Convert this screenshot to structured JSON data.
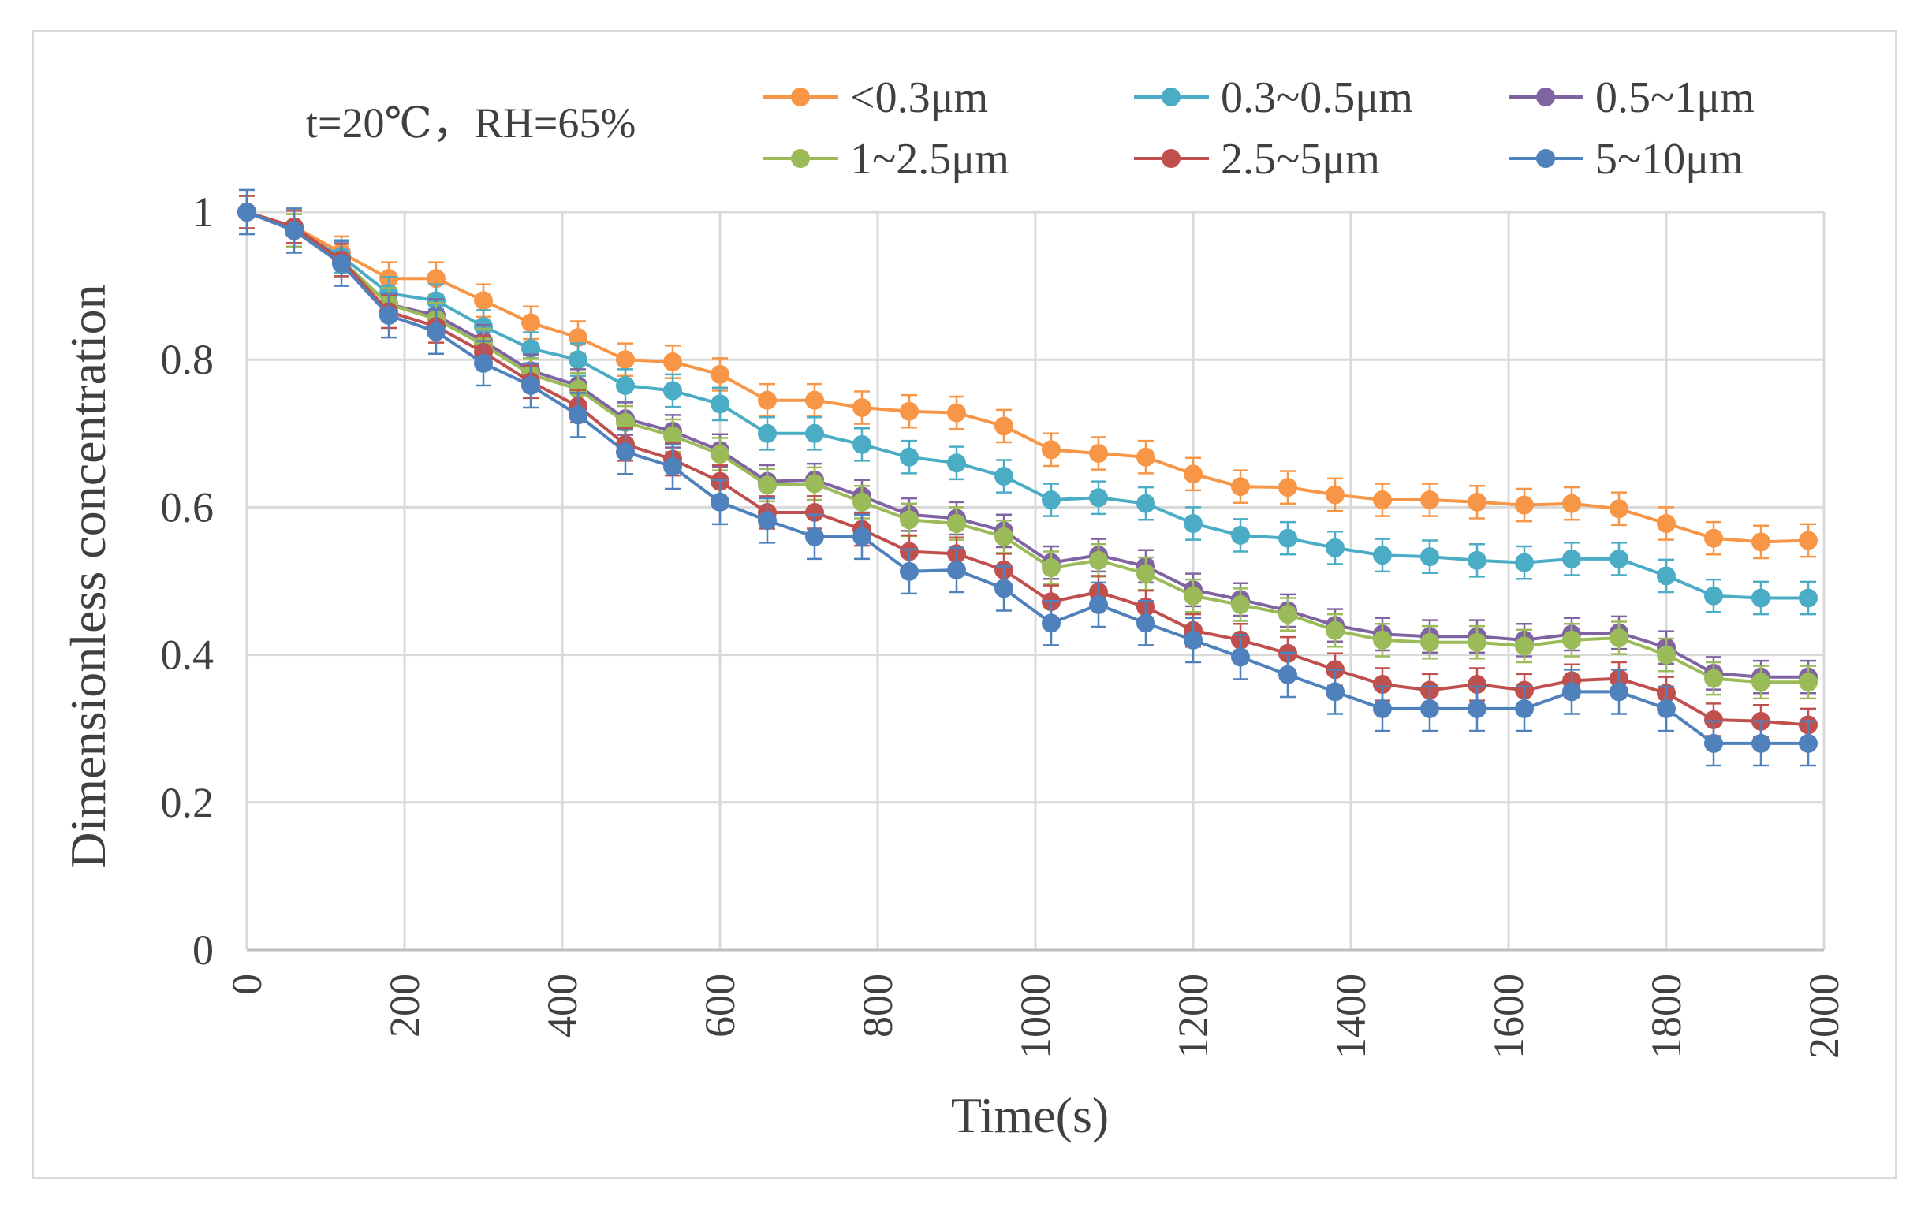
{
  "chart_data": {
    "type": "line",
    "annotation": "t=20℃，RH=65%",
    "xlabel": "Time(s)",
    "ylabel": "Dimensionless concentration",
    "xlim": [
      0,
      2000
    ],
    "ylim": [
      0,
      1
    ],
    "x_ticks": [
      "0",
      "200",
      "400",
      "600",
      "800",
      "1000",
      "1200",
      "1400",
      "1600",
      "1800",
      "2000"
    ],
    "y_ticks": [
      "0",
      "0.2",
      "0.4",
      "0.6",
      "0.8",
      "1"
    ],
    "grid": true,
    "legend_position": "top",
    "x": [
      0,
      60,
      120,
      180,
      240,
      300,
      360,
      420,
      480,
      540,
      600,
      660,
      720,
      780,
      840,
      900,
      960,
      1020,
      1080,
      1140,
      1200,
      1260,
      1320,
      1380,
      1440,
      1500,
      1560,
      1620,
      1680,
      1740,
      1800,
      1860,
      1920,
      1980
    ],
    "series": [
      {
        "name": "<0.3μm",
        "color": "#f79646",
        "error": 0.022,
        "values": [
          1.0,
          0.98,
          0.945,
          0.91,
          0.91,
          0.88,
          0.85,
          0.83,
          0.8,
          0.797,
          0.78,
          0.745,
          0.745,
          0.735,
          0.73,
          0.728,
          0.71,
          0.678,
          0.673,
          0.668,
          0.645,
          0.628,
          0.627,
          0.617,
          0.61,
          0.61,
          0.607,
          0.603,
          0.605,
          0.598,
          0.578,
          0.558,
          0.553,
          0.555
        ]
      },
      {
        "name": "0.3~0.5μm",
        "color": "#4bacc6",
        "error": 0.022,
        "values": [
          1.0,
          0.975,
          0.94,
          0.89,
          0.88,
          0.845,
          0.815,
          0.8,
          0.765,
          0.758,
          0.74,
          0.7,
          0.7,
          0.685,
          0.668,
          0.66,
          0.642,
          0.61,
          0.613,
          0.605,
          0.578,
          0.562,
          0.558,
          0.545,
          0.535,
          0.533,
          0.528,
          0.525,
          0.53,
          0.53,
          0.507,
          0.48,
          0.477,
          0.477
        ]
      },
      {
        "name": "0.5~1μm",
        "color": "#8064a2",
        "error": 0.022,
        "values": [
          1.0,
          0.975,
          0.935,
          0.875,
          0.86,
          0.825,
          0.785,
          0.765,
          0.72,
          0.703,
          0.677,
          0.635,
          0.637,
          0.615,
          0.59,
          0.585,
          0.568,
          0.525,
          0.535,
          0.52,
          0.488,
          0.475,
          0.46,
          0.44,
          0.428,
          0.425,
          0.425,
          0.42,
          0.428,
          0.43,
          0.41,
          0.375,
          0.37,
          0.37
        ]
      },
      {
        "name": "1~2.5μm",
        "color": "#9bbb59",
        "error": 0.022,
        "values": [
          1.0,
          0.975,
          0.935,
          0.875,
          0.855,
          0.82,
          0.78,
          0.76,
          0.715,
          0.697,
          0.672,
          0.63,
          0.632,
          0.607,
          0.583,
          0.578,
          0.56,
          0.518,
          0.528,
          0.51,
          0.48,
          0.468,
          0.455,
          0.433,
          0.42,
          0.417,
          0.417,
          0.412,
          0.42,
          0.423,
          0.4,
          0.368,
          0.363,
          0.363
        ]
      },
      {
        "name": "2.5~5μm",
        "color": "#c0504d",
        "error": 0.022,
        "values": [
          1.0,
          0.98,
          0.935,
          0.865,
          0.845,
          0.81,
          0.77,
          0.737,
          0.685,
          0.665,
          0.635,
          0.593,
          0.593,
          0.57,
          0.54,
          0.537,
          0.515,
          0.472,
          0.485,
          0.465,
          0.433,
          0.42,
          0.402,
          0.38,
          0.36,
          0.352,
          0.36,
          0.352,
          0.365,
          0.368,
          0.348,
          0.312,
          0.31,
          0.305
        ]
      },
      {
        "name": "5~10μm",
        "color": "#4f81bd",
        "error": 0.03,
        "values": [
          1.0,
          0.975,
          0.93,
          0.86,
          0.838,
          0.795,
          0.765,
          0.725,
          0.675,
          0.655,
          0.607,
          0.582,
          0.56,
          0.56,
          0.513,
          0.515,
          0.49,
          0.443,
          0.468,
          0.443,
          0.42,
          0.397,
          0.373,
          0.35,
          0.327,
          0.327,
          0.327,
          0.327,
          0.35,
          0.35,
          0.327,
          0.28,
          0.28,
          0.28
        ]
      }
    ]
  }
}
